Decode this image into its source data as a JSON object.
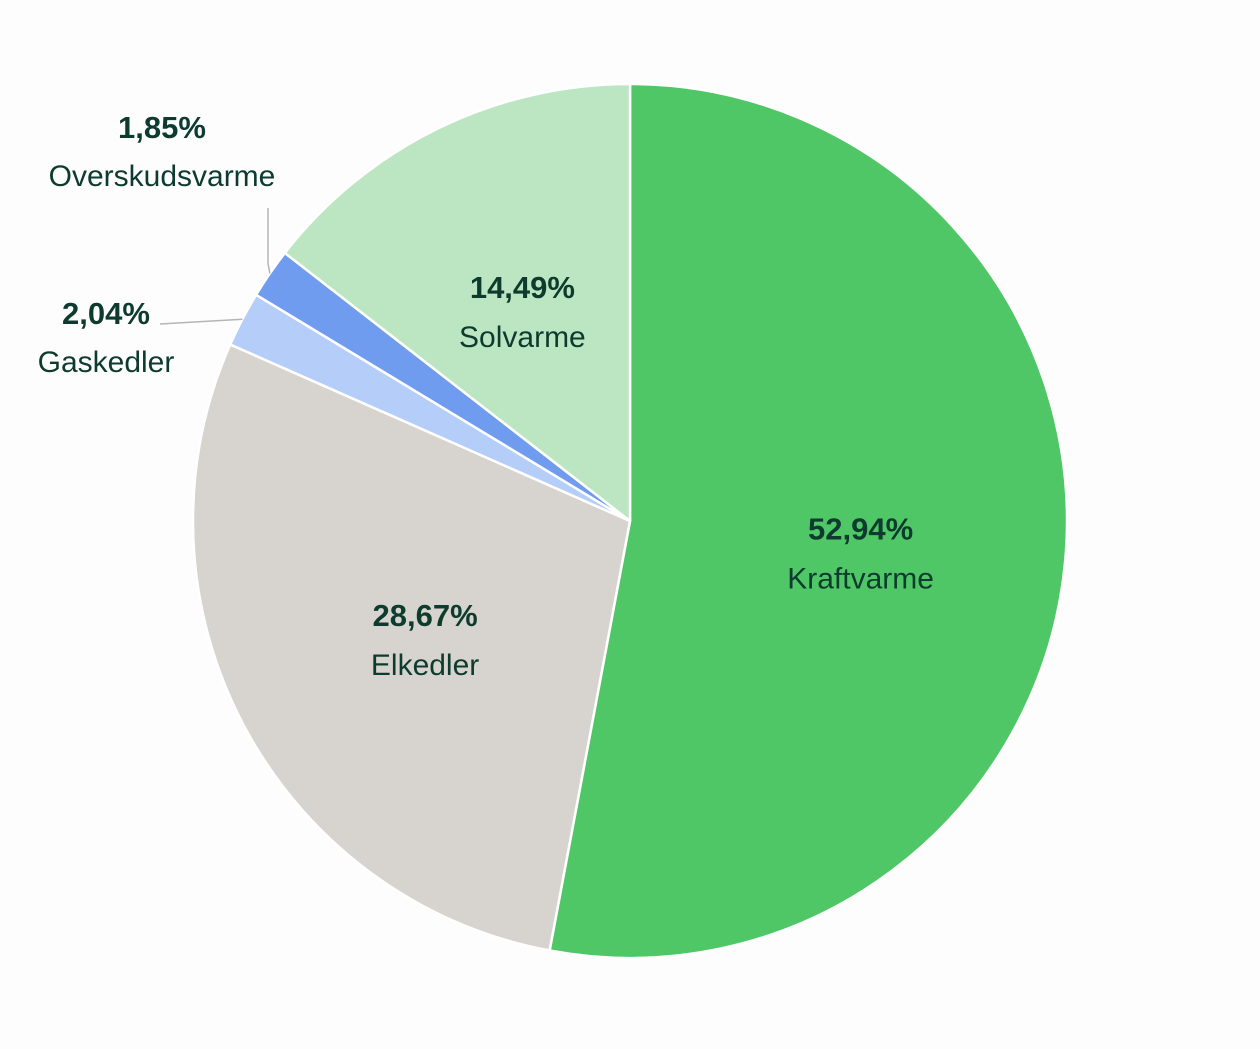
{
  "chart_data": {
    "type": "pie",
    "start_angle_deg": 0,
    "direction": "clockwise",
    "label_color": "#0d3b2e",
    "slice_border_color": "#ffffff",
    "leader_line_color": "#b5b5b5",
    "slices": [
      {
        "label": "Kraftvarme",
        "value": 52.94,
        "value_label": "52,94%",
        "color": "#50c766",
        "label_placement": "inside"
      },
      {
        "label": "Elkedler",
        "value": 28.67,
        "value_label": "28,67%",
        "color": "#d7d4cf",
        "label_placement": "inside"
      },
      {
        "label": "Gaskedler",
        "value": 2.04,
        "value_label": "2,04%",
        "color": "#b5cdf9",
        "label_placement": "outside-left"
      },
      {
        "label": "Overskudsvarme",
        "value": 1.85,
        "value_label": "1,85%",
        "color": "#6f9cee",
        "label_placement": "outside-top"
      },
      {
        "label": "Solvarme",
        "value": 14.49,
        "value_label": "14,49%",
        "color": "#bce5c1",
        "label_placement": "inside"
      }
    ]
  }
}
